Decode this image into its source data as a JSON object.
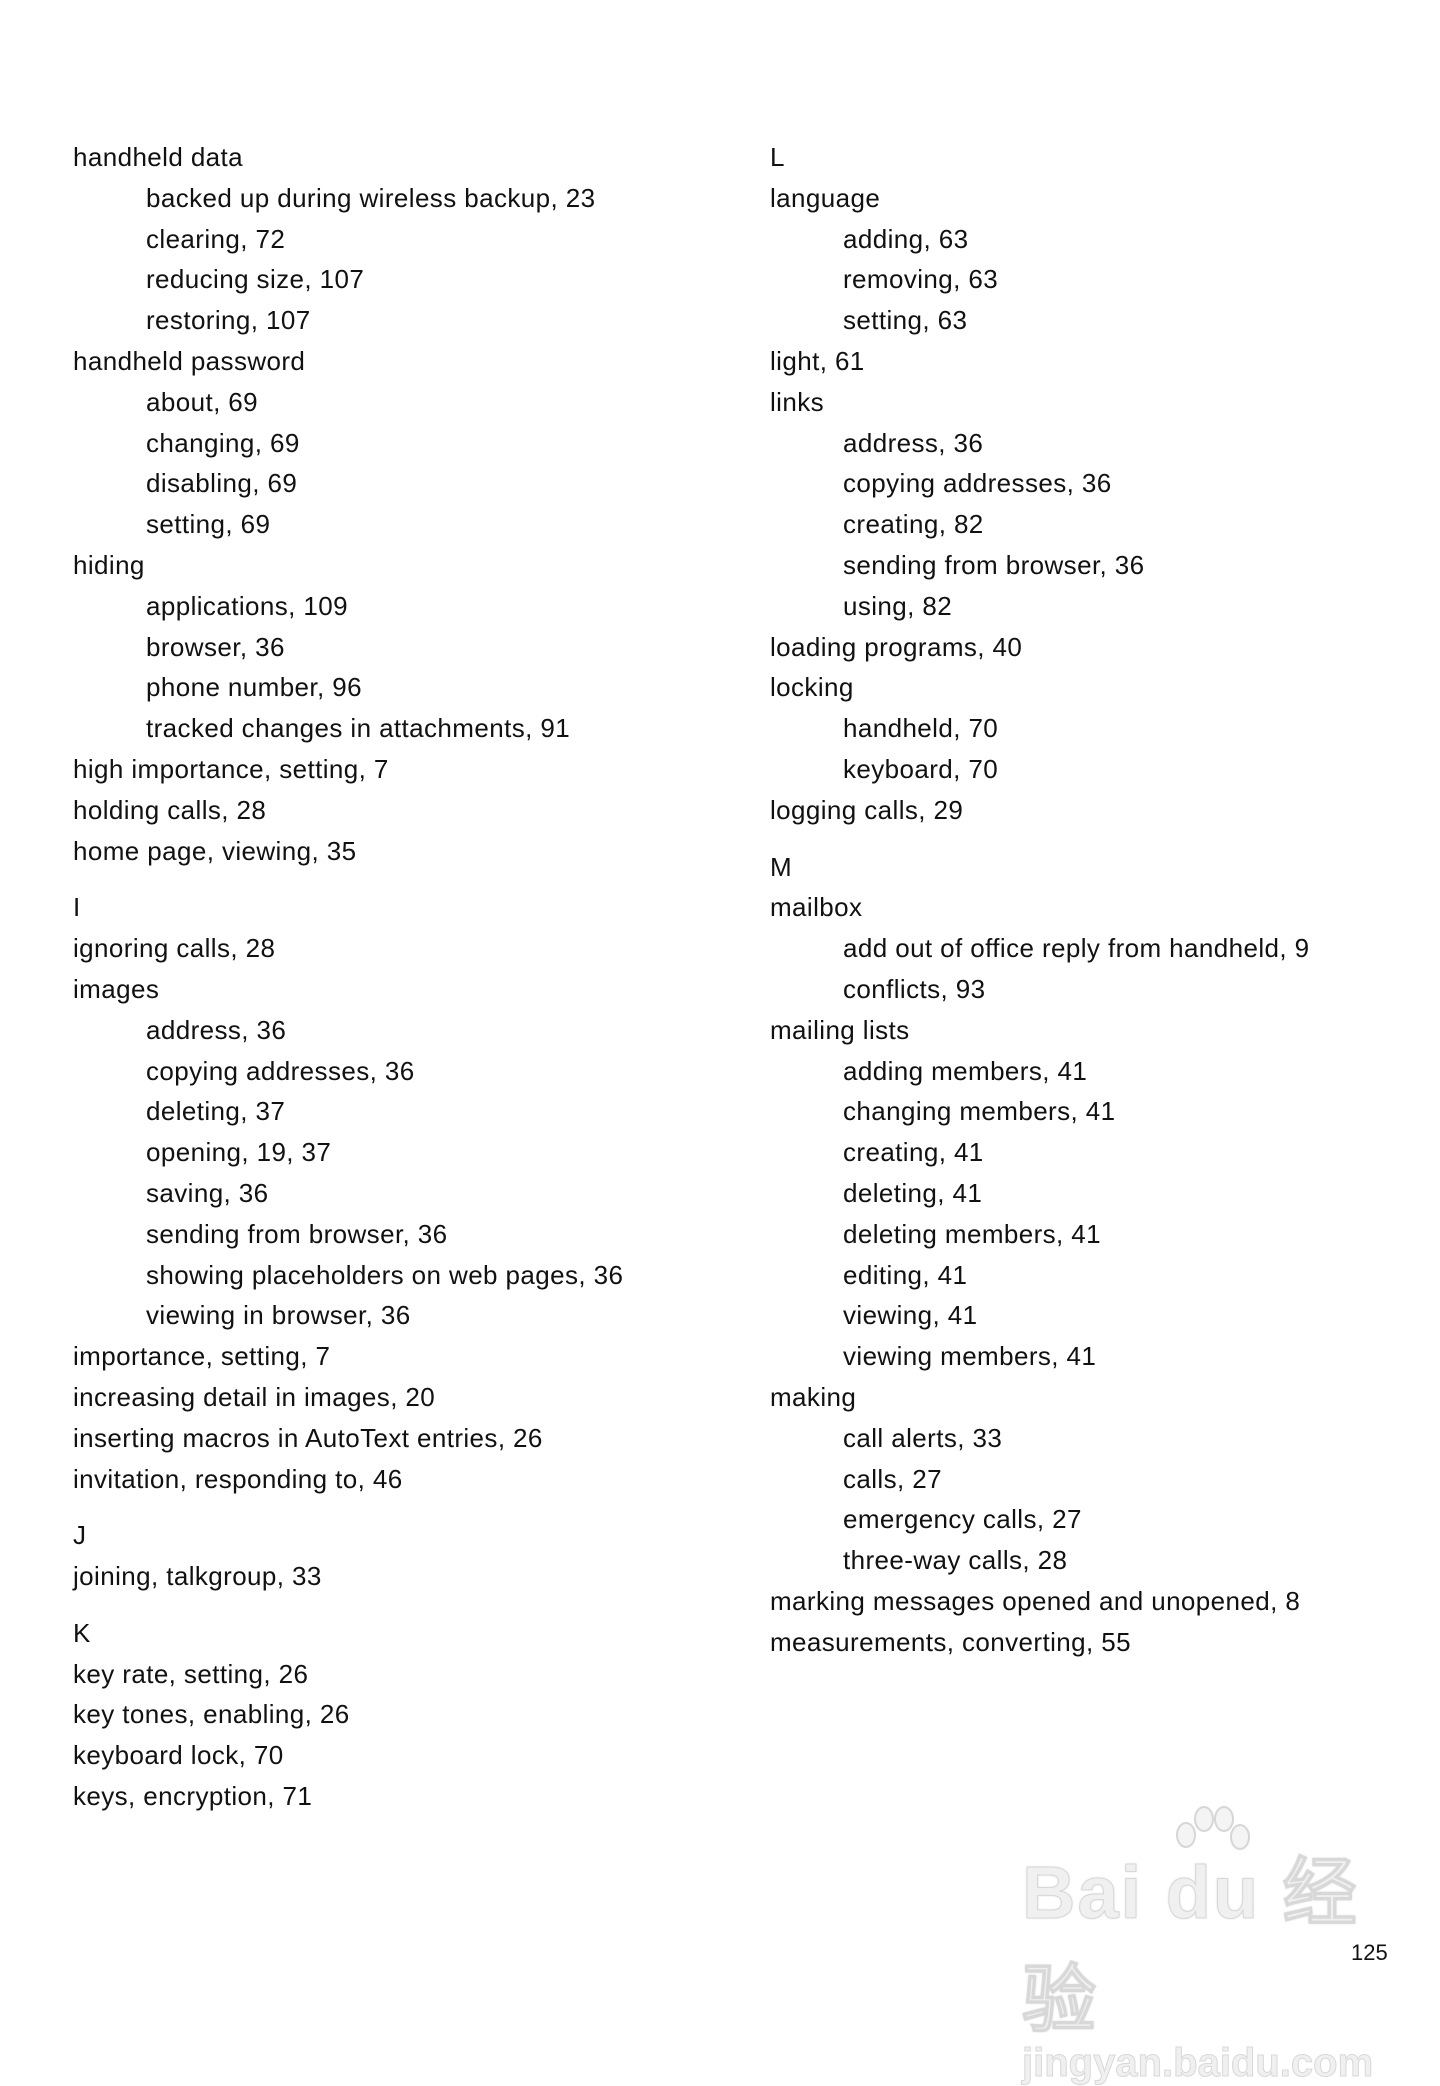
{
  "columns": [
    [
      {
        "type": "main",
        "text": "handheld data"
      },
      {
        "type": "sub",
        "text": "backed up during wireless backup, 23"
      },
      {
        "type": "sub",
        "text": "clearing, 72"
      },
      {
        "type": "sub",
        "text": "reducing size, 107"
      },
      {
        "type": "sub",
        "text": "restoring, 107"
      },
      {
        "type": "main",
        "text": "handheld password"
      },
      {
        "type": "sub",
        "text": "about, 69"
      },
      {
        "type": "sub",
        "text": "changing, 69"
      },
      {
        "type": "sub",
        "text": "disabling, 69"
      },
      {
        "type": "sub",
        "text": "setting, 69"
      },
      {
        "type": "main",
        "text": "hiding"
      },
      {
        "type": "sub",
        "text": "applications, 109"
      },
      {
        "type": "sub",
        "text": "browser, 36"
      },
      {
        "type": "sub",
        "text": "phone number, 96"
      },
      {
        "type": "sub",
        "text": "tracked changes in attachments, 91"
      },
      {
        "type": "main",
        "text": "high importance, setting, 7"
      },
      {
        "type": "main",
        "text": "holding calls, 28"
      },
      {
        "type": "main",
        "text": "home page, viewing, 35"
      },
      {
        "type": "letter",
        "text": "I"
      },
      {
        "type": "main",
        "text": "ignoring calls, 28"
      },
      {
        "type": "main",
        "text": "images"
      },
      {
        "type": "sub",
        "text": "address, 36"
      },
      {
        "type": "sub",
        "text": "copying addresses, 36"
      },
      {
        "type": "sub",
        "text": "deleting, 37"
      },
      {
        "type": "sub",
        "text": "opening, 19, 37"
      },
      {
        "type": "sub",
        "text": "saving, 36"
      },
      {
        "type": "sub",
        "text": "sending from browser, 36"
      },
      {
        "type": "sub",
        "text": "showing placeholders on web pages, 36"
      },
      {
        "type": "sub",
        "text": "viewing in browser, 36"
      },
      {
        "type": "main",
        "text": "importance, setting, 7"
      },
      {
        "type": "main",
        "text": "increasing detail in images, 20"
      },
      {
        "type": "main",
        "text": "inserting macros in AutoText entries, 26"
      },
      {
        "type": "main",
        "text": "invitation, responding to, 46"
      },
      {
        "type": "letter",
        "text": "J"
      },
      {
        "type": "main",
        "text": "joining, talkgroup, 33"
      },
      {
        "type": "letter",
        "text": "K"
      },
      {
        "type": "main",
        "text": "key rate, setting, 26"
      },
      {
        "type": "main",
        "text": "key tones, enabling, 26"
      },
      {
        "type": "main",
        "text": "keyboard lock, 70"
      },
      {
        "type": "main",
        "text": "keys, encryption, 71"
      }
    ],
    [
      {
        "type": "letter",
        "text": "L"
      },
      {
        "type": "main",
        "text": "language"
      },
      {
        "type": "sub",
        "text": "adding, 63"
      },
      {
        "type": "sub",
        "text": "removing, 63"
      },
      {
        "type": "sub",
        "text": "setting, 63"
      },
      {
        "type": "main",
        "text": "light, 61"
      },
      {
        "type": "main",
        "text": "links"
      },
      {
        "type": "sub",
        "text": "address, 36"
      },
      {
        "type": "sub",
        "text": "copying addresses, 36"
      },
      {
        "type": "sub",
        "text": "creating, 82"
      },
      {
        "type": "sub",
        "text": "sending from browser, 36"
      },
      {
        "type": "sub",
        "text": "using, 82"
      },
      {
        "type": "main",
        "text": "loading programs, 40"
      },
      {
        "type": "main",
        "text": "locking"
      },
      {
        "type": "sub",
        "text": "handheld, 70"
      },
      {
        "type": "sub",
        "text": "keyboard, 70"
      },
      {
        "type": "main",
        "text": "logging calls, 29"
      },
      {
        "type": "letter",
        "text": "M"
      },
      {
        "type": "main",
        "text": "mailbox"
      },
      {
        "type": "sub",
        "text": "add out of office reply from handheld, 9"
      },
      {
        "type": "sub",
        "text": "conflicts, 93"
      },
      {
        "type": "main",
        "text": "mailing lists"
      },
      {
        "type": "sub",
        "text": "adding members, 41"
      },
      {
        "type": "sub",
        "text": "changing members, 41"
      },
      {
        "type": "sub",
        "text": "creating, 41"
      },
      {
        "type": "sub",
        "text": "deleting, 41"
      },
      {
        "type": "sub",
        "text": "deleting members, 41"
      },
      {
        "type": "sub",
        "text": "editing, 41"
      },
      {
        "type": "sub",
        "text": "viewing, 41"
      },
      {
        "type": "sub",
        "text": "viewing members, 41"
      },
      {
        "type": "main",
        "text": "making"
      },
      {
        "type": "sub",
        "text": "call alerts, 33"
      },
      {
        "type": "sub",
        "text": "calls, 27"
      },
      {
        "type": "sub",
        "text": "emergency calls, 27"
      },
      {
        "type": "sub",
        "text": "three-way calls, 28"
      },
      {
        "type": "main",
        "text": "marking messages opened and unopened, 8"
      },
      {
        "type": "main",
        "text": "measurements, converting, 55"
      }
    ]
  ],
  "page_number": "125",
  "watermark": {
    "logo_text": "Baidu 经验",
    "url_text": "jingyan.baidu.com"
  }
}
